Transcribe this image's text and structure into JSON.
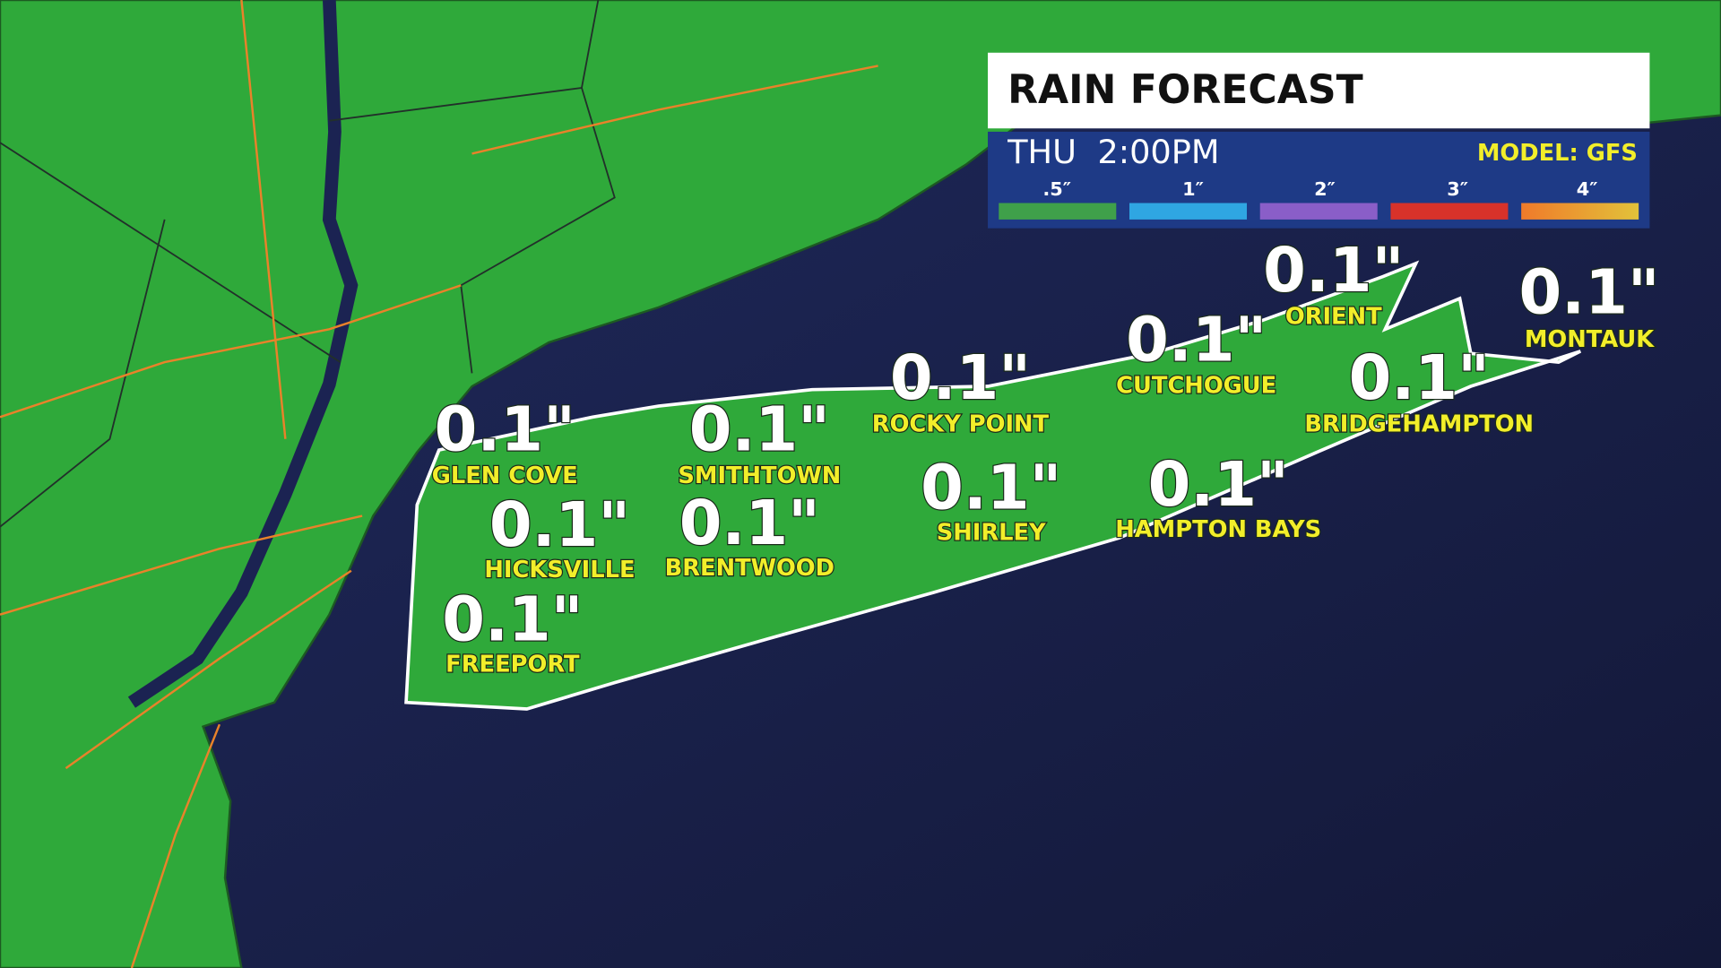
{
  "header": {
    "title": "RAIN FORECAST",
    "time": "THU  2:00PM",
    "model": "MODEL: GFS"
  },
  "legend": {
    "labels": [
      ".5″",
      "1″",
      "2″",
      "3″",
      "4″"
    ]
  },
  "locations": [
    {
      "name": "GLEN COVE",
      "amount": "0.1\""
    },
    {
      "name": "SMITHTOWN",
      "amount": "0.1\""
    },
    {
      "name": "ROCKY POINT",
      "amount": "0.1\""
    },
    {
      "name": "CUTCHOGUE",
      "amount": "0.1\""
    },
    {
      "name": "ORIENT",
      "amount": "0.1\""
    },
    {
      "name": "MONTAUK",
      "amount": "0.1\""
    },
    {
      "name": "BRIDGEHAMPTON",
      "amount": "0.1\""
    },
    {
      "name": "HAMPTON BAYS",
      "amount": "0.1\""
    },
    {
      "name": "SHIRLEY",
      "amount": "0.1\""
    },
    {
      "name": "BRENTWOOD",
      "amount": "0.1\""
    },
    {
      "name": "HICKSVILLE",
      "amount": "0.1\""
    },
    {
      "name": "FREEPORT",
      "amount": "0.1\""
    }
  ]
}
